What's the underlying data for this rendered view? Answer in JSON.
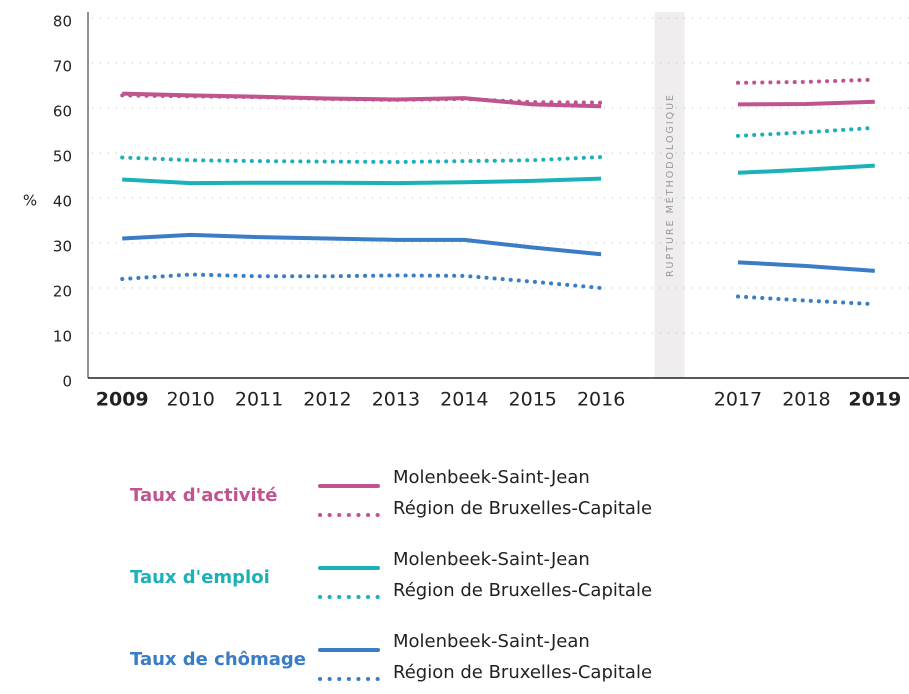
{
  "chart_data": {
    "type": "line",
    "y_label": "%",
    "annotation": "RUPTURE MÉTHODOLOGIQUE",
    "categories": [
      "2009",
      "2010",
      "2011",
      "2012",
      "2013",
      "2014",
      "2015",
      "2016",
      null,
      "2017",
      "2018",
      "2019"
    ],
    "ylim": [
      0,
      80
    ],
    "yticks": [
      0,
      10,
      20,
      30,
      40,
      50,
      60,
      70,
      80
    ],
    "grid": true,
    "series": [
      {
        "group": "Taux d'activité",
        "name": "Molenbeek-Saint-Jean",
        "color": "#c0548f",
        "dashed": false,
        "values": [
          63.2,
          62.8,
          62.5,
          62.1,
          61.9,
          62.2,
          60.8,
          60.4,
          null,
          60.8,
          60.9,
          61.4
        ]
      },
      {
        "group": "Taux d'activité",
        "name": "Région de Bruxelles-Capitale",
        "color": "#c0548f",
        "dashed": true,
        "values": [
          62.8,
          62.6,
          62.4,
          62.0,
          61.8,
          62.0,
          61.3,
          61.2,
          null,
          65.6,
          65.8,
          66.3
        ]
      },
      {
        "group": "Taux d'emploi",
        "name": "Molenbeek-Saint-Jean",
        "color": "#1ab1b9",
        "dashed": false,
        "values": [
          44.1,
          43.3,
          43.4,
          43.4,
          43.3,
          43.5,
          43.8,
          44.3,
          null,
          45.6,
          46.3,
          47.2
        ]
      },
      {
        "group": "Taux d'emploi",
        "name": "Région de Bruxelles-Capitale",
        "color": "#1ab1b9",
        "dashed": true,
        "values": [
          49.0,
          48.4,
          48.2,
          48.1,
          48.0,
          48.2,
          48.4,
          49.1,
          null,
          53.8,
          54.6,
          55.6
        ]
      },
      {
        "group": "Taux de chômage",
        "name": "Molenbeek-Saint-Jean",
        "color": "#3a7dc4",
        "dashed": false,
        "values": [
          31.0,
          31.8,
          31.3,
          31.0,
          30.7,
          30.7,
          29.0,
          27.5,
          null,
          25.7,
          24.9,
          23.8
        ]
      },
      {
        "group": "Taux de chômage",
        "name": "Région de Bruxelles-Capitale",
        "color": "#3a7dc4",
        "dashed": true,
        "values": [
          22.0,
          23.0,
          22.6,
          22.6,
          22.8,
          22.7,
          21.4,
          20.0,
          null,
          18.1,
          17.2,
          16.4
        ]
      }
    ]
  }
}
